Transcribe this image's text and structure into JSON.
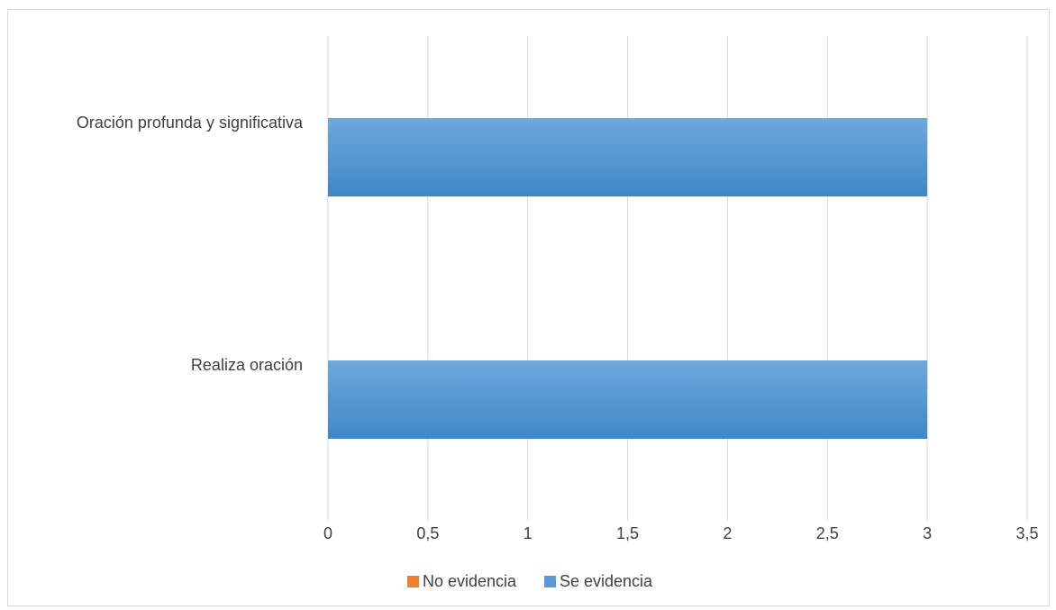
{
  "chart_data": {
    "type": "bar",
    "orientation": "horizontal",
    "categories": [
      "Oración profunda y significativa",
      "Realiza oración"
    ],
    "series": [
      {
        "name": "No evidencia",
        "values": [
          0,
          0
        ],
        "color": "#ed7d31"
      },
      {
        "name": "Se evidencia",
        "values": [
          3,
          3
        ],
        "color": "#5b9bd5"
      }
    ],
    "xlim": [
      0,
      3.5
    ],
    "x_ticks": [
      0,
      0.5,
      1,
      1.5,
      2,
      2.5,
      3,
      3.5
    ],
    "x_tick_labels": [
      "0",
      "0,5",
      "1",
      "1,5",
      "2",
      "2,5",
      "3",
      "3,5"
    ],
    "grid": "vertical",
    "legend_position": "bottom"
  }
}
